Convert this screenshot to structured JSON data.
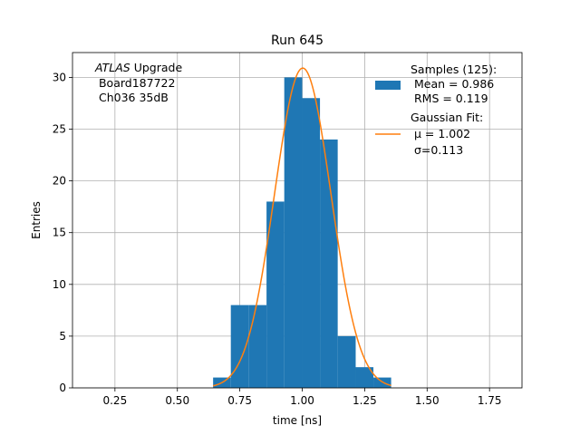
{
  "chart_data": {
    "type": "bar",
    "title": "Run 645",
    "xlabel": "time [ns]",
    "ylabel": "Entries",
    "xlim": [
      0.08,
      1.88
    ],
    "ylim": [
      0,
      32.4
    ],
    "x_ticks": [
      0.25,
      0.5,
      0.75,
      1.0,
      1.25,
      1.5,
      1.75
    ],
    "x_tick_labels": [
      "0.25",
      "0.50",
      "0.75",
      "1.00",
      "1.25",
      "1.50",
      "1.75"
    ],
    "y_ticks": [
      0,
      5,
      10,
      15,
      20,
      25,
      30
    ],
    "y_tick_labels": [
      "0",
      "5",
      "10",
      "15",
      "20",
      "25",
      "30"
    ],
    "grid": true,
    "annotation": {
      "line1_italic": "ATLAS",
      "line1_rest": " Upgrade",
      "line2": " Board187722",
      "line3": " Ch036 35dB"
    },
    "histogram": {
      "name_lines": [
        "Samples (125):",
        " Mean = 0.986",
        " RMS = 0.119"
      ],
      "color": "#1f77b4",
      "bin_edges": [
        0.643,
        0.714,
        0.785,
        0.857,
        0.928,
        1.0,
        1.071,
        1.142,
        1.214,
        1.285,
        1.356
      ],
      "counts": [
        1,
        8,
        8,
        18,
        30,
        28,
        24,
        5,
        2,
        1
      ]
    },
    "fit": {
      "name_lines": [
        "Gaussian Fit:",
        " μ = 1.002",
        " σ=0.113"
      ],
      "color": "#ff7f0e",
      "type": "gaussian",
      "amplitude": 30.9,
      "mu": 1.002,
      "sigma": 0.113,
      "x_range": [
        0.643,
        1.356
      ]
    },
    "legend_position": "upper right"
  }
}
